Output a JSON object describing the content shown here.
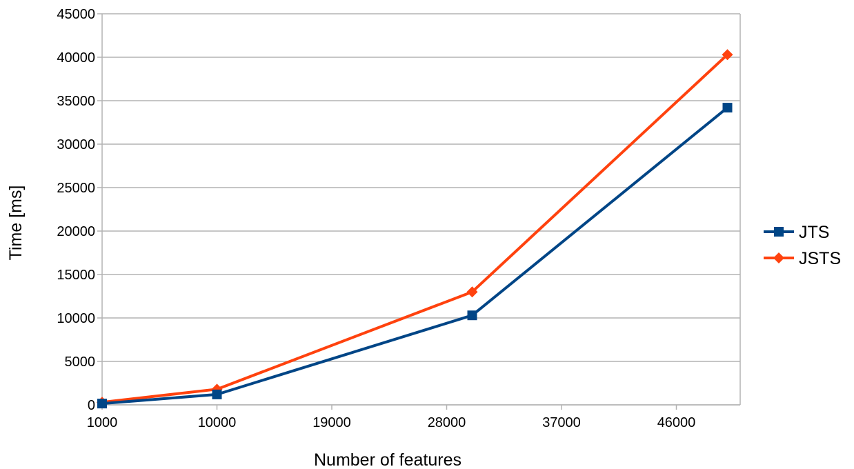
{
  "chart_data": {
    "type": "line",
    "title": "",
    "xlabel": "Number of features",
    "ylabel": "Time [ms]",
    "xlim": [
      1000,
      51000
    ],
    "ylim": [
      0,
      45000
    ],
    "x_ticks": [
      "1000",
      "10000",
      "19000",
      "28000",
      "37000",
      "46000"
    ],
    "x_tick_values": [
      1000,
      10000,
      19000,
      28000,
      37000,
      46000
    ],
    "y_ticks": [
      "0",
      "5000",
      "10000",
      "15000",
      "20000",
      "25000",
      "30000",
      "35000",
      "40000",
      "45000"
    ],
    "y_tick_values": [
      0,
      5000,
      10000,
      15000,
      20000,
      25000,
      30000,
      35000,
      40000,
      45000
    ],
    "grid": "horizontal",
    "legend_position": "right",
    "series": [
      {
        "name": "JTS",
        "color": "#004586",
        "marker": "square",
        "x": [
          1000,
          10000,
          30000,
          50000
        ],
        "y": [
          150,
          1200,
          10300,
          34200
        ]
      },
      {
        "name": "JSTS",
        "color": "#ff420e",
        "marker": "diamond",
        "x": [
          1000,
          10000,
          30000,
          50000
        ],
        "y": [
          300,
          1800,
          13000,
          40300
        ]
      }
    ]
  }
}
